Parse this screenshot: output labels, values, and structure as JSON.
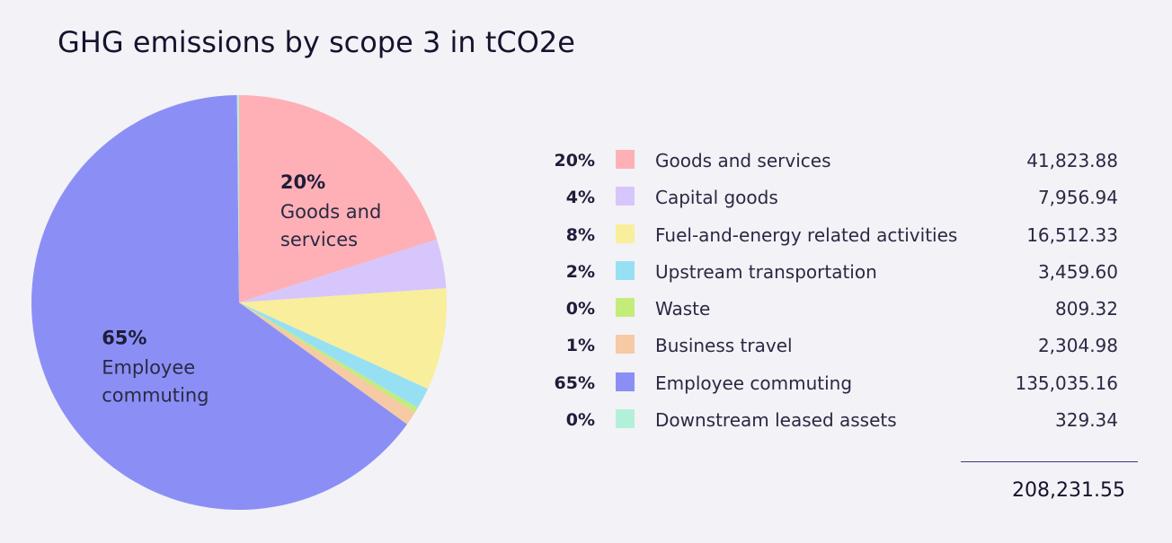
{
  "title": "GHG emissions by scope 3 in tCO2e",
  "chart_data": {
    "type": "pie",
    "title": "GHG emissions by scope 3 in tCO2e",
    "slices": [
      {
        "label": "Goods and services",
        "pct": "20%",
        "value": 41823.88,
        "value_text": "41,823.88",
        "color": "#feb0b6",
        "callout_lines": [
          "Goods and",
          "services"
        ]
      },
      {
        "label": "Capital goods",
        "pct": "4%",
        "value": 7956.94,
        "value_text": "7,956.94",
        "color": "#d7c6fb"
      },
      {
        "label": "Fuel-and-energy related activities",
        "pct": "8%",
        "value": 16512.33,
        "value_text": "16,512.33",
        "color": "#f9ee9b"
      },
      {
        "label": "Upstream transportation",
        "pct": "2%",
        "value": 3459.6,
        "value_text": "3,459.60",
        "color": "#97e0f3"
      },
      {
        "label": "Waste",
        "pct": "0%",
        "value": 809.32,
        "value_text": "809.32",
        "color": "#c3ec7b"
      },
      {
        "label": "Business travel",
        "pct": "1%",
        "value": 2304.98,
        "value_text": "2,304.98",
        "color": "#f6caa4"
      },
      {
        "label": "Employee commuting",
        "pct": "65%",
        "value": 135035.16,
        "value_text": "135,035.16",
        "color": "#8b8ff5",
        "callout_lines": [
          "Employee",
          "commuting"
        ]
      },
      {
        "label": "Downstream leased assets",
        "pct": "0%",
        "value": 329.34,
        "value_text": "329.34",
        "color": "#b3f0d9"
      }
    ],
    "total": 208231.55,
    "total_text": "208,231.55",
    "legend_position": "right"
  }
}
